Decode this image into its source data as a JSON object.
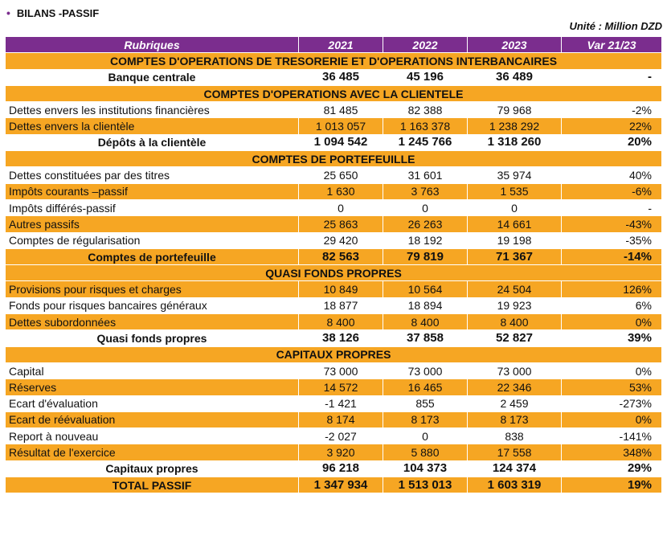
{
  "title": "BILANS -PASSIF",
  "unit": "Unité : Million DZD",
  "headers": [
    "Rubriques",
    "2021",
    "2022",
    "2023",
    "Var 21/23"
  ],
  "rows": [
    {
      "type": "section",
      "label": "COMPTES D'OPERATIONS DE TRESORERIE ET D'OPERATIONS INTERBANCAIRES"
    },
    {
      "type": "total",
      "style": "white",
      "label": "Banque centrale",
      "v2021": "36 485",
      "v2022": "45 196",
      "v2023": "36 489",
      "var": "-"
    },
    {
      "type": "section",
      "label": "COMPTES D'OPERATIONS AVEC LA CLIENTELE"
    },
    {
      "type": "line",
      "style": "white",
      "label": "Dettes envers les institutions financières",
      "v2021": "81 485",
      "v2022": "82 388",
      "v2023": "79 968",
      "var": "-2%"
    },
    {
      "type": "line",
      "style": "orange",
      "label": "Dettes envers la clientèle",
      "v2021": "1 013 057",
      "v2022": "1 163 378",
      "v2023": "1 238 292",
      "var": "22%"
    },
    {
      "type": "total",
      "style": "white",
      "label": "Dépôts à la clientèle",
      "v2021": "1 094 542",
      "v2022": "1 245 766",
      "v2023": "1 318 260",
      "var": "20%"
    },
    {
      "type": "section",
      "label": "COMPTES DE PORTEFEUILLE"
    },
    {
      "type": "line",
      "style": "white",
      "label": "Dettes constituées par des titres",
      "v2021": "25 650",
      "v2022": "31 601",
      "v2023": "35 974",
      "var": "40%"
    },
    {
      "type": "line",
      "style": "orange",
      "label": "Impôts courants –passif",
      "v2021": "1 630",
      "v2022": "3 763",
      "v2023": "1 535",
      "var": "-6%"
    },
    {
      "type": "line",
      "style": "white",
      "label": "Impôts différés-passif",
      "v2021": "0",
      "v2022": "0",
      "v2023": "0",
      "var": "-"
    },
    {
      "type": "line",
      "style": "orange",
      "label": "Autres passifs",
      "v2021": "25 863",
      "v2022": "26 263",
      "v2023": "14 661",
      "var": "-43%"
    },
    {
      "type": "line",
      "style": "white",
      "label": "Comptes de régularisation",
      "v2021": "29 420",
      "v2022": "18 192",
      "v2023": "19 198",
      "var": "-35%"
    },
    {
      "type": "total",
      "style": "orange",
      "label": "Comptes de portefeuille",
      "v2021": "82 563",
      "v2022": "79 819",
      "v2023": "71 367",
      "var": "-14%"
    },
    {
      "type": "section",
      "label": "QUASI FONDS PROPRES"
    },
    {
      "type": "line",
      "style": "orange",
      "label": "Provisions pour risques et charges",
      "v2021": "10 849",
      "v2022": "10 564",
      "v2023": "24 504",
      "var": "126%"
    },
    {
      "type": "line",
      "style": "white",
      "label": "Fonds pour risques bancaires généraux",
      "v2021": "18 877",
      "v2022": "18 894",
      "v2023": "19 923",
      "var": "6%"
    },
    {
      "type": "line",
      "style": "orange",
      "label": "Dettes subordonnées",
      "v2021": "8 400",
      "v2022": "8 400",
      "v2023": "8 400",
      "var": "0%"
    },
    {
      "type": "total",
      "style": "white",
      "label": "Quasi fonds propres",
      "v2021": "38 126",
      "v2022": "37 858",
      "v2023": "52 827",
      "var": "39%"
    },
    {
      "type": "section",
      "label": "CAPITAUX PROPRES"
    },
    {
      "type": "line",
      "style": "white",
      "label": "Capital",
      "v2021": "73 000",
      "v2022": "73 000",
      "v2023": "73 000",
      "var": "0%"
    },
    {
      "type": "line",
      "style": "orange",
      "label": "Réserves",
      "v2021": "14 572",
      "v2022": "16 465",
      "v2023": "22 346",
      "var": "53%"
    },
    {
      "type": "line",
      "style": "white",
      "label": "Ecart d'évaluation",
      "v2021": "-1 421",
      "v2022": "855",
      "v2023": "2 459",
      "var": "-273%"
    },
    {
      "type": "line",
      "style": "orange",
      "label": "Ecart de réévaluation",
      "v2021": "8 174",
      "v2022": "8 173",
      "v2023": "8 173",
      "var": "0%"
    },
    {
      "type": "line",
      "style": "white",
      "label": "Report à nouveau",
      "v2021": "-2 027",
      "v2022": "0",
      "v2023": "838",
      "var": "-141%"
    },
    {
      "type": "line",
      "style": "orange",
      "label": "Résultat de l'exercice",
      "v2021": "3 920",
      "v2022": "5 880",
      "v2023": "17 558",
      "var": "348%"
    },
    {
      "type": "total",
      "style": "white",
      "label": "Capitaux propres",
      "v2021": "96 218",
      "v2022": "104 373",
      "v2023": "124 374",
      "var": "29%"
    },
    {
      "type": "grand",
      "style": "orange",
      "label": "TOTAL PASSIF",
      "v2021": "1 347 934",
      "v2022": "1 513 013",
      "v2023": "1 603 319",
      "var": "19%"
    }
  ],
  "colors": {
    "header": "#7b2d8e",
    "highlight": "#f6a623",
    "bullet": "#7b2d8e"
  }
}
